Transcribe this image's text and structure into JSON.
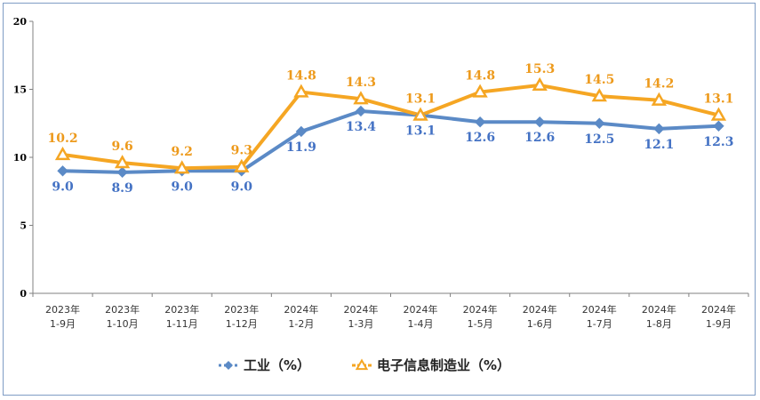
{
  "chart_data": {
    "type": "line",
    "title": "",
    "xlabel": "",
    "ylabel": "",
    "ylim": [
      0,
      20
    ],
    "yticks": [
      0,
      5,
      10,
      15,
      20
    ],
    "grid": false,
    "legend_position": "bottom",
    "categories": [
      [
        "2023年",
        "1-9月"
      ],
      [
        "2023年",
        "1-10月"
      ],
      [
        "2023年",
        "1-11月"
      ],
      [
        "2023年",
        "1-12月"
      ],
      [
        "2024年",
        "1-2月"
      ],
      [
        "2024年",
        "1-3月"
      ],
      [
        "2024年",
        "1-4月"
      ],
      [
        "2024年",
        "1-5月"
      ],
      [
        "2024年",
        "1-6月"
      ],
      [
        "2024年",
        "1-7月"
      ],
      [
        "2024年",
        "1-8月"
      ],
      [
        "2024年",
        "1-9月"
      ]
    ],
    "series": [
      {
        "name": "工业（%）",
        "marker": "diamond",
        "color": "#5b8ac6",
        "label_color": "#4472c4",
        "values": [
          9.0,
          8.9,
          9.0,
          9.0,
          11.9,
          13.4,
          13.1,
          12.6,
          12.6,
          12.5,
          12.1,
          12.3
        ],
        "labels": [
          "9.0",
          "8.9",
          "9.0",
          "9.0",
          "11.9",
          "13.4",
          "13.1",
          "12.6",
          "12.6",
          "12.5",
          "12.1",
          "12.3"
        ]
      },
      {
        "name": "电子信息制造业（%）",
        "marker": "triangle",
        "color": "#f5a623",
        "label_color": "#ed9a1c",
        "values": [
          10.2,
          9.6,
          9.2,
          9.3,
          14.8,
          14.3,
          13.1,
          14.8,
          15.3,
          14.5,
          14.2,
          13.1
        ],
        "labels": [
          "10.2",
          "9.6",
          "9.2",
          "9.3",
          "14.8",
          "14.3",
          "13.1",
          "14.8",
          "15.3",
          "14.5",
          "14.2",
          "13.1"
        ]
      }
    ]
  }
}
